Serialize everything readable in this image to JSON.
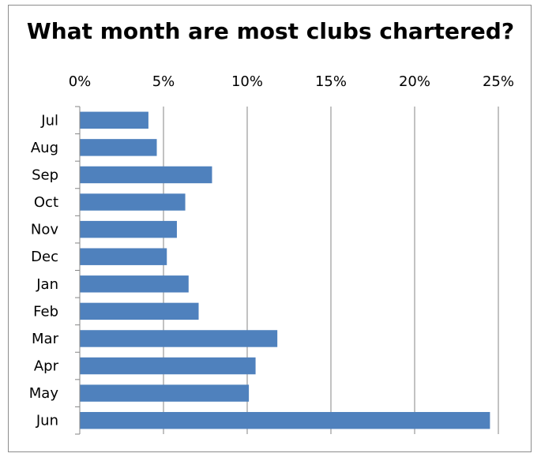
{
  "chart_data": {
    "type": "bar",
    "orientation": "horizontal",
    "title": "What month are most clubs chartered?",
    "categories": [
      "Jul",
      "Aug",
      "Sep",
      "Oct",
      "Nov",
      "Dec",
      "Jan",
      "Feb",
      "Mar",
      "Apr",
      "May",
      "Jun"
    ],
    "values": [
      4.1,
      4.6,
      7.9,
      6.3,
      5.8,
      5.2,
      6.5,
      7.1,
      11.8,
      10.5,
      10.1,
      24.5
    ],
    "value_unit": "%",
    "xlim": [
      0,
      25
    ],
    "x_ticks": [
      "0%",
      "5%",
      "10%",
      "15%",
      "20%",
      "25%"
    ],
    "x_axis_position": "top",
    "grid": "vertical",
    "legend": "none",
    "bar_color": "#4f81bd"
  }
}
